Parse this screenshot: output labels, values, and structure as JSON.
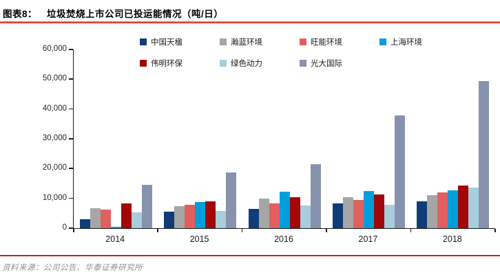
{
  "figure": {
    "label": "图表8：",
    "title": "垃圾焚烧上市公司已投运能情况（吨/日）",
    "source": "资料来源：公司公告、华泰证券研究所"
  },
  "colors": {
    "header_rule_red": "#c9211e",
    "footer_rule_red": "#c9211e",
    "axis_black": "#1a1a1a"
  },
  "chart_data": {
    "type": "bar",
    "title": "垃圾焚烧上市公司已投运能情况（吨/日）",
    "xlabel": "",
    "ylabel": "",
    "ylim": [
      0,
      60000
    ],
    "ytick_step": 10000,
    "yticks": [
      "0",
      "10,000",
      "20,000",
      "30,000",
      "40,000",
      "50,000",
      "60,000"
    ],
    "grid": false,
    "legend_position": "top",
    "legend_columns": 4,
    "categories": [
      "2014",
      "2015",
      "2016",
      "2017",
      "2018"
    ],
    "series": [
      {
        "name": "中国天楹",
        "color": "#103d78",
        "values": [
          3000,
          5500,
          6400,
          8300,
          9000
        ]
      },
      {
        "name": "瀚蓝环境",
        "color": "#a6a6a6",
        "values": [
          6800,
          7400,
          9900,
          10400,
          11000
        ]
      },
      {
        "name": "旺能环境",
        "color": "#e25f5f",
        "values": [
          6300,
          7900,
          8400,
          9400,
          12100
        ]
      },
      {
        "name": "上海环境",
        "color": "#009fdb",
        "values": [
          400,
          8800,
          12300,
          12400,
          12700
        ]
      },
      {
        "name": "伟明环保",
        "color": "#a20808",
        "values": [
          8300,
          9100,
          10400,
          11300,
          14200
        ]
      },
      {
        "name": "绿色动力",
        "color": "#a8cddd",
        "values": [
          5300,
          5700,
          7700,
          7800,
          13700
        ]
      },
      {
        "name": "光大国际",
        "color": "#8793ae",
        "values": [
          14500,
          18700,
          21400,
          37900,
          49500
        ]
      }
    ]
  }
}
